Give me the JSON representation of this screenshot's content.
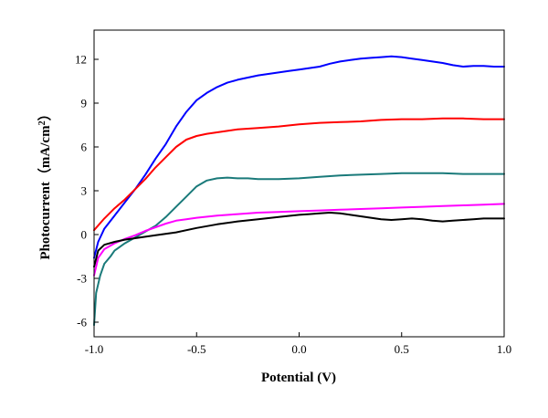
{
  "chart_data": {
    "type": "line",
    "title": "",
    "xlabel": "Potential (V)",
    "ylabel_parts": {
      "main": "Photocurrent（mA/cm",
      "sup": "2",
      "tail": "）"
    },
    "xlim": [
      -1.0,
      1.0
    ],
    "ylim": [
      -7,
      14
    ],
    "xticks": [
      -1.0,
      -0.5,
      0.0,
      0.5,
      1.0
    ],
    "xtick_labels": [
      "-1.0",
      "-0.5",
      "0.0",
      "0.5",
      "1.0"
    ],
    "yticks": [
      -6,
      -3,
      0,
      3,
      6,
      9,
      12
    ],
    "ytick_labels": [
      "-6",
      "-3",
      "0",
      "3",
      "6",
      "9",
      "12"
    ],
    "grid": false,
    "legend": "none",
    "series": [
      {
        "color": "#0000ff",
        "x": [
          -1.0,
          -0.98,
          -0.95,
          -0.9,
          -0.85,
          -0.8,
          -0.75,
          -0.7,
          -0.65,
          -0.6,
          -0.55,
          -0.5,
          -0.45,
          -0.4,
          -0.35,
          -0.3,
          -0.25,
          -0.2,
          -0.15,
          -0.1,
          -0.05,
          0.0,
          0.05,
          0.1,
          0.15,
          0.2,
          0.25,
          0.3,
          0.35,
          0.4,
          0.45,
          0.5,
          0.55,
          0.6,
          0.65,
          0.7,
          0.75,
          0.8,
          0.85,
          0.9,
          0.95,
          1.0
        ],
        "y": [
          -1.6,
          -0.5,
          0.4,
          1.3,
          2.2,
          3.1,
          4.1,
          5.2,
          6.2,
          7.4,
          8.4,
          9.2,
          9.7,
          10.1,
          10.4,
          10.6,
          10.75,
          10.9,
          11.0,
          11.1,
          11.2,
          11.3,
          11.4,
          11.5,
          11.7,
          11.85,
          11.95,
          12.05,
          12.1,
          12.15,
          12.2,
          12.15,
          12.05,
          11.95,
          11.85,
          11.75,
          11.6,
          11.5,
          11.55,
          11.55,
          11.5,
          11.5
        ]
      },
      {
        "color": "#ff0000",
        "x": [
          -1.0,
          -0.95,
          -0.9,
          -0.85,
          -0.8,
          -0.75,
          -0.7,
          -0.65,
          -0.6,
          -0.55,
          -0.5,
          -0.45,
          -0.4,
          -0.35,
          -0.3,
          -0.2,
          -0.1,
          0.0,
          0.1,
          0.2,
          0.3,
          0.4,
          0.5,
          0.6,
          0.7,
          0.8,
          0.9,
          1.0
        ],
        "y": [
          0.3,
          1.1,
          1.8,
          2.4,
          3.1,
          3.8,
          4.6,
          5.3,
          6.0,
          6.5,
          6.75,
          6.9,
          7.0,
          7.1,
          7.2,
          7.3,
          7.4,
          7.55,
          7.65,
          7.7,
          7.75,
          7.85,
          7.9,
          7.9,
          7.95,
          7.95,
          7.9,
          7.9
        ]
      },
      {
        "color": "#1a7a7a",
        "x": [
          -1.0,
          -0.99,
          -0.97,
          -0.95,
          -0.92,
          -0.9,
          -0.85,
          -0.8,
          -0.75,
          -0.7,
          -0.65,
          -0.6,
          -0.55,
          -0.5,
          -0.45,
          -0.4,
          -0.35,
          -0.3,
          -0.25,
          -0.2,
          -0.1,
          0.0,
          0.1,
          0.2,
          0.3,
          0.4,
          0.5,
          0.6,
          0.7,
          0.8,
          0.9,
          1.0
        ],
        "y": [
          -6.2,
          -4.0,
          -2.8,
          -2.0,
          -1.5,
          -1.1,
          -0.6,
          -0.2,
          0.2,
          0.6,
          1.2,
          1.9,
          2.6,
          3.3,
          3.7,
          3.85,
          3.9,
          3.85,
          3.85,
          3.8,
          3.8,
          3.85,
          3.95,
          4.05,
          4.1,
          4.15,
          4.2,
          4.2,
          4.2,
          4.15,
          4.15,
          4.15
        ]
      },
      {
        "color": "#ff00ff",
        "x": [
          -1.0,
          -0.98,
          -0.95,
          -0.9,
          -0.85,
          -0.8,
          -0.75,
          -0.7,
          -0.65,
          -0.6,
          -0.55,
          -0.5,
          -0.4,
          -0.3,
          -0.2,
          -0.1,
          0.0,
          0.1,
          0.2,
          0.3,
          0.4,
          0.5,
          0.6,
          0.7,
          0.8,
          0.9,
          1.0
        ],
        "y": [
          -2.8,
          -1.6,
          -1.0,
          -0.6,
          -0.3,
          -0.05,
          0.25,
          0.5,
          0.75,
          0.95,
          1.05,
          1.15,
          1.3,
          1.4,
          1.5,
          1.55,
          1.6,
          1.65,
          1.7,
          1.75,
          1.8,
          1.85,
          1.9,
          1.95,
          2.0,
          2.05,
          2.1
        ]
      },
      {
        "color": "#000000",
        "x": [
          -1.0,
          -0.98,
          -0.95,
          -0.9,
          -0.85,
          -0.8,
          -0.7,
          -0.6,
          -0.5,
          -0.4,
          -0.3,
          -0.2,
          -0.1,
          0.0,
          0.05,
          0.1,
          0.15,
          0.2,
          0.25,
          0.3,
          0.35,
          0.4,
          0.45,
          0.5,
          0.55,
          0.6,
          0.65,
          0.7,
          0.75,
          0.8,
          0.85,
          0.9,
          0.95,
          1.0
        ],
        "y": [
          -2.2,
          -1.1,
          -0.7,
          -0.5,
          -0.35,
          -0.25,
          -0.05,
          0.15,
          0.45,
          0.7,
          0.9,
          1.05,
          1.2,
          1.35,
          1.4,
          1.45,
          1.5,
          1.45,
          1.35,
          1.25,
          1.15,
          1.05,
          1.0,
          1.05,
          1.1,
          1.05,
          0.95,
          0.9,
          0.95,
          1.0,
          1.05,
          1.1,
          1.1,
          1.1
        ]
      }
    ]
  }
}
